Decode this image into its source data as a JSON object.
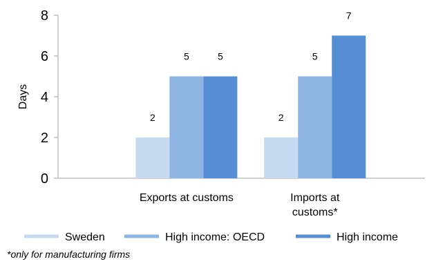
{
  "chart_data": {
    "type": "bar",
    "categories": [
      [
        "Exports at customs"
      ],
      [
        "Imports at",
        "customs*"
      ]
    ],
    "series": [
      {
        "name": "Sweden",
        "values": [
          2,
          2
        ],
        "color": "#c6d9f1"
      },
      {
        "name": "High income: OECD",
        "values": [
          5,
          5
        ],
        "color": "#8db4e2"
      },
      {
        "name": "High income",
        "values": [
          5,
          7
        ],
        "color": "#558ed5"
      }
    ],
    "ylabel": "Days",
    "ylim": [
      0,
      8
    ],
    "yticks": [
      0,
      2,
      4,
      6,
      8
    ],
    "legend_position": "bottom",
    "grid": false
  },
  "footnote": "*only for manufacturing firms"
}
